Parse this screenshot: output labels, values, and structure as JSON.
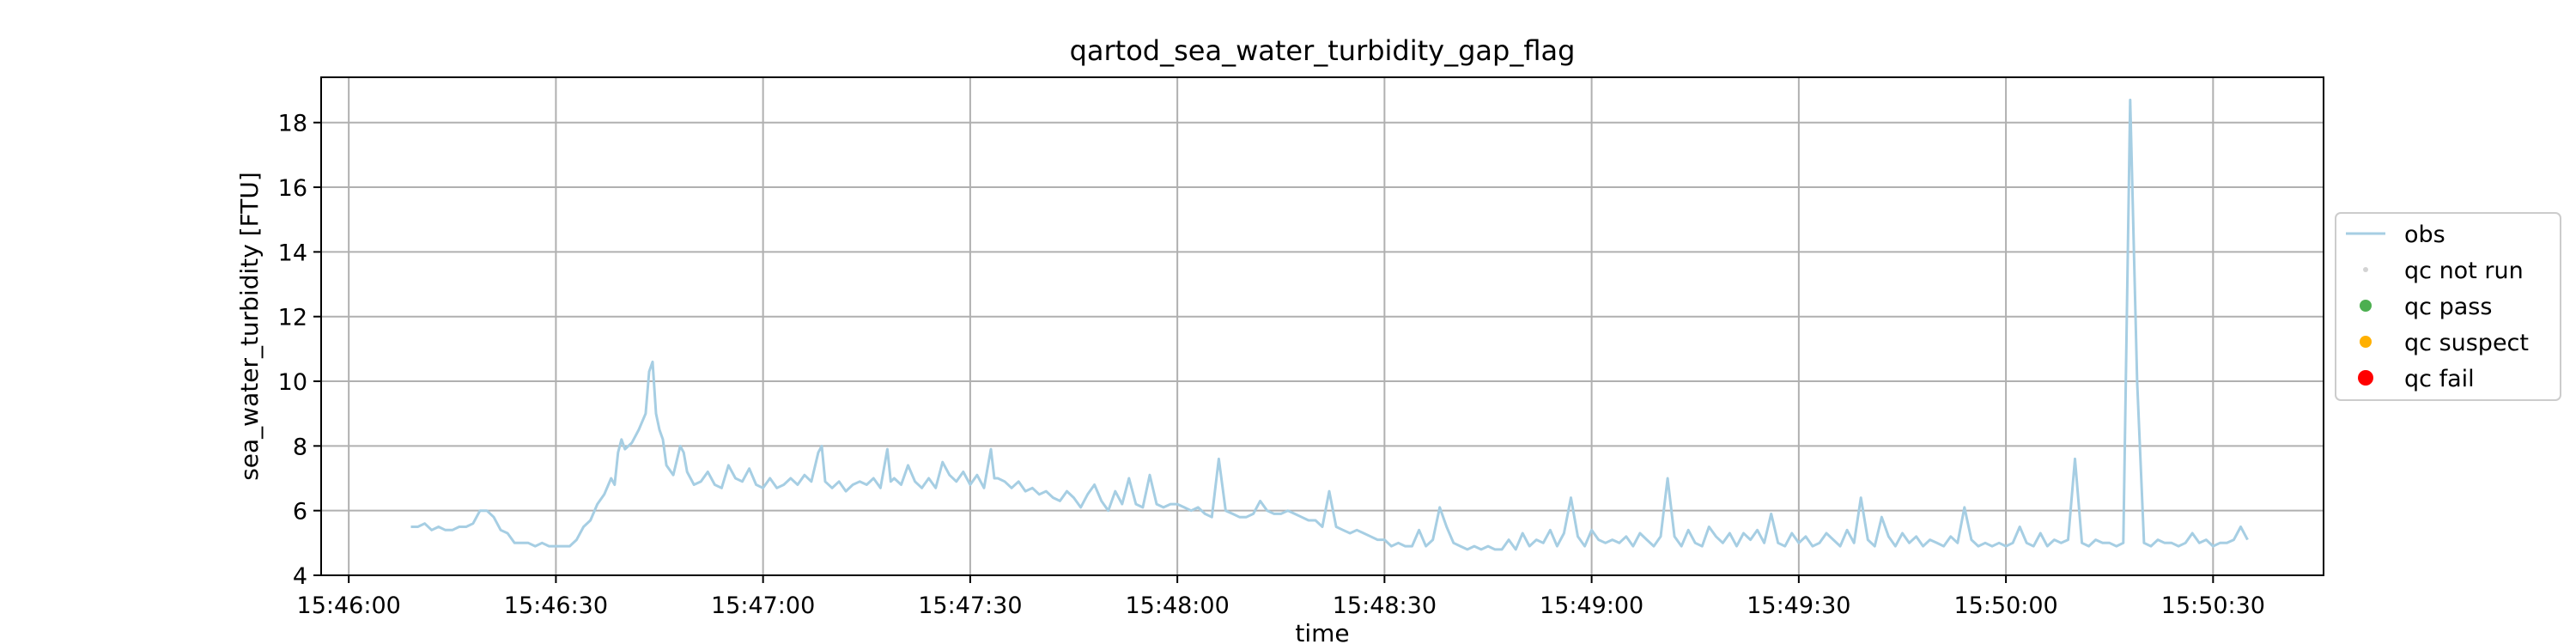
{
  "chart_data": {
    "type": "line",
    "title": "qartod_sea_water_turbidity_gap_flag",
    "xlabel": "time",
    "ylabel": "sea_water_turbidity [FTU]",
    "x_ticks": [
      "15:46:00",
      "15:46:30",
      "15:47:00",
      "15:47:30",
      "15:48:00",
      "15:48:30",
      "15:49:00",
      "15:49:30",
      "15:50:00",
      "15:50:30"
    ],
    "x_tick_seconds": [
      0,
      30,
      60,
      90,
      120,
      150,
      180,
      210,
      240,
      270
    ],
    "xlim_seconds": [
      -4,
      286
    ],
    "y_ticks": [
      4,
      6,
      8,
      10,
      12,
      14,
      16,
      18
    ],
    "ylim": [
      4,
      19.4
    ],
    "grid": true,
    "legend_position": "right",
    "legend": [
      {
        "label": "obs",
        "marker": "line",
        "color": "#a6cee3"
      },
      {
        "label": "qc not run",
        "marker": "dot-small",
        "color": "#d3d3d3"
      },
      {
        "label": "qc pass",
        "marker": "dot",
        "color": "#4caf50"
      },
      {
        "label": "qc suspect",
        "marker": "dot",
        "color": "#ffb000"
      },
      {
        "label": "qc fail",
        "marker": "dot-large",
        "color": "#ff0000"
      }
    ],
    "series": [
      {
        "name": "obs",
        "color": "#a6cee3",
        "points": [
          [
            9,
            5.5
          ],
          [
            10,
            5.5
          ],
          [
            11,
            5.6
          ],
          [
            12,
            5.4
          ],
          [
            13,
            5.5
          ],
          [
            14,
            5.4
          ],
          [
            15,
            5.4
          ],
          [
            16,
            5.5
          ],
          [
            17,
            5.5
          ],
          [
            18,
            5.6
          ],
          [
            19,
            6.0
          ],
          [
            20,
            6.0
          ],
          [
            21,
            5.8
          ],
          [
            22,
            5.4
          ],
          [
            23,
            5.3
          ],
          [
            24,
            5.0
          ],
          [
            25,
            5.0
          ],
          [
            26,
            5.0
          ],
          [
            27,
            4.9
          ],
          [
            28,
            5.0
          ],
          [
            29,
            4.9
          ],
          [
            30,
            4.9
          ],
          [
            31,
            4.9
          ],
          [
            32,
            4.9
          ],
          [
            33,
            5.1
          ],
          [
            34,
            5.5
          ],
          [
            35,
            5.7
          ],
          [
            36,
            6.2
          ],
          [
            37,
            6.5
          ],
          [
            38,
            7.0
          ],
          [
            38.5,
            6.8
          ],
          [
            39,
            7.8
          ],
          [
            39.5,
            8.2
          ],
          [
            40,
            7.9
          ],
          [
            41,
            8.1
          ],
          [
            42,
            8.5
          ],
          [
            43,
            9.0
          ],
          [
            43.5,
            10.3
          ],
          [
            44,
            10.6
          ],
          [
            44.5,
            9.0
          ],
          [
            45,
            8.5
          ],
          [
            45.5,
            8.2
          ],
          [
            46,
            7.4
          ],
          [
            47,
            7.1
          ],
          [
            48,
            8.0
          ],
          [
            48.5,
            7.8
          ],
          [
            49,
            7.2
          ],
          [
            50,
            6.8
          ],
          [
            51,
            6.9
          ],
          [
            52,
            7.2
          ],
          [
            53,
            6.8
          ],
          [
            54,
            6.7
          ],
          [
            55,
            7.4
          ],
          [
            56,
            7.0
          ],
          [
            57,
            6.9
          ],
          [
            58,
            7.3
          ],
          [
            59,
            6.8
          ],
          [
            60,
            6.7
          ],
          [
            61,
            7.0
          ],
          [
            62,
            6.7
          ],
          [
            63,
            6.8
          ],
          [
            64,
            7.0
          ],
          [
            65,
            6.8
          ],
          [
            66,
            7.1
          ],
          [
            67,
            6.9
          ],
          [
            68,
            7.8
          ],
          [
            68.5,
            8.0
          ],
          [
            69,
            6.9
          ],
          [
            70,
            6.7
          ],
          [
            71,
            6.9
          ],
          [
            72,
            6.6
          ],
          [
            73,
            6.8
          ],
          [
            74,
            6.9
          ],
          [
            75,
            6.8
          ],
          [
            76,
            7.0
          ],
          [
            77,
            6.7
          ],
          [
            78,
            7.9
          ],
          [
            78.5,
            6.9
          ],
          [
            79,
            7.0
          ],
          [
            80,
            6.8
          ],
          [
            81,
            7.4
          ],
          [
            82,
            6.9
          ],
          [
            83,
            6.7
          ],
          [
            84,
            7.0
          ],
          [
            85,
            6.7
          ],
          [
            86,
            7.5
          ],
          [
            87,
            7.1
          ],
          [
            88,
            6.9
          ],
          [
            89,
            7.2
          ],
          [
            90,
            6.8
          ],
          [
            91,
            7.1
          ],
          [
            92,
            6.7
          ],
          [
            93,
            7.9
          ],
          [
            93.5,
            7.0
          ],
          [
            94,
            7.0
          ],
          [
            95,
            6.9
          ],
          [
            96,
            6.7
          ],
          [
            97,
            6.9
          ],
          [
            98,
            6.6
          ],
          [
            99,
            6.7
          ],
          [
            100,
            6.5
          ],
          [
            101,
            6.6
          ],
          [
            102,
            6.4
          ],
          [
            103,
            6.3
          ],
          [
            104,
            6.6
          ],
          [
            105,
            6.4
          ],
          [
            106,
            6.1
          ],
          [
            107,
            6.5
          ],
          [
            108,
            6.8
          ],
          [
            109,
            6.3
          ],
          [
            110,
            6.0
          ],
          [
            111,
            6.6
          ],
          [
            112,
            6.2
          ],
          [
            113,
            7.0
          ],
          [
            114,
            6.2
          ],
          [
            115,
            6.1
          ],
          [
            116,
            7.1
          ],
          [
            117,
            6.2
          ],
          [
            118,
            6.1
          ],
          [
            119,
            6.2
          ],
          [
            120,
            6.2
          ],
          [
            121,
            6.1
          ],
          [
            122,
            6.0
          ],
          [
            123,
            6.1
          ],
          [
            124,
            5.9
          ],
          [
            125,
            5.8
          ],
          [
            126,
            7.6
          ],
          [
            127,
            6.0
          ],
          [
            128,
            5.9
          ],
          [
            129,
            5.8
          ],
          [
            130,
            5.8
          ],
          [
            131,
            5.9
          ],
          [
            132,
            6.3
          ],
          [
            133,
            6.0
          ],
          [
            134,
            5.9
          ],
          [
            135,
            5.9
          ],
          [
            136,
            6.0
          ],
          [
            137,
            5.9
          ],
          [
            138,
            5.8
          ],
          [
            139,
            5.7
          ],
          [
            140,
            5.7
          ],
          [
            141,
            5.5
          ],
          [
            142,
            6.6
          ],
          [
            143,
            5.5
          ],
          [
            144,
            5.4
          ],
          [
            145,
            5.3
          ],
          [
            146,
            5.4
          ],
          [
            147,
            5.3
          ],
          [
            148,
            5.2
          ],
          [
            149,
            5.1
          ],
          [
            150,
            5.1
          ],
          [
            151,
            4.9
          ],
          [
            152,
            5.0
          ],
          [
            153,
            4.9
          ],
          [
            154,
            4.9
          ],
          [
            155,
            5.4
          ],
          [
            156,
            4.9
          ],
          [
            157,
            5.1
          ],
          [
            158,
            6.1
          ],
          [
            159,
            5.5
          ],
          [
            160,
            5.0
          ],
          [
            161,
            4.9
          ],
          [
            162,
            4.8
          ],
          [
            163,
            4.9
          ],
          [
            164,
            4.8
          ],
          [
            165,
            4.9
          ],
          [
            166,
            4.8
          ],
          [
            167,
            4.8
          ],
          [
            168,
            5.1
          ],
          [
            169,
            4.8
          ],
          [
            170,
            5.3
          ],
          [
            171,
            4.9
          ],
          [
            172,
            5.1
          ],
          [
            173,
            5.0
          ],
          [
            174,
            5.4
          ],
          [
            175,
            4.9
          ],
          [
            176,
            5.3
          ],
          [
            177,
            6.4
          ],
          [
            178,
            5.2
          ],
          [
            179,
            4.9
          ],
          [
            180,
            5.4
          ],
          [
            181,
            5.1
          ],
          [
            182,
            5.0
          ],
          [
            183,
            5.1
          ],
          [
            184,
            5.0
          ],
          [
            185,
            5.2
          ],
          [
            186,
            4.9
          ],
          [
            187,
            5.3
          ],
          [
            188,
            5.1
          ],
          [
            189,
            4.9
          ],
          [
            190,
            5.2
          ],
          [
            191,
            7.0
          ],
          [
            192,
            5.2
          ],
          [
            193,
            4.9
          ],
          [
            194,
            5.4
          ],
          [
            195,
            5.0
          ],
          [
            196,
            4.9
          ],
          [
            197,
            5.5
          ],
          [
            198,
            5.2
          ],
          [
            199,
            5.0
          ],
          [
            200,
            5.3
          ],
          [
            201,
            4.9
          ],
          [
            202,
            5.3
          ],
          [
            203,
            5.1
          ],
          [
            204,
            5.4
          ],
          [
            205,
            5.0
          ],
          [
            206,
            5.9
          ],
          [
            207,
            5.0
          ],
          [
            208,
            4.9
          ],
          [
            209,
            5.3
          ],
          [
            210,
            5.0
          ],
          [
            211,
            5.2
          ],
          [
            212,
            4.9
          ],
          [
            213,
            5.0
          ],
          [
            214,
            5.3
          ],
          [
            215,
            5.1
          ],
          [
            216,
            4.9
          ],
          [
            217,
            5.4
          ],
          [
            218,
            5.0
          ],
          [
            219,
            6.4
          ],
          [
            220,
            5.1
          ],
          [
            221,
            4.9
          ],
          [
            222,
            5.8
          ],
          [
            223,
            5.2
          ],
          [
            224,
            4.9
          ],
          [
            225,
            5.3
          ],
          [
            226,
            5.0
          ],
          [
            227,
            5.2
          ],
          [
            228,
            4.9
          ],
          [
            229,
            5.1
          ],
          [
            230,
            5.0
          ],
          [
            231,
            4.9
          ],
          [
            232,
            5.2
          ],
          [
            233,
            5.0
          ],
          [
            234,
            6.1
          ],
          [
            235,
            5.1
          ],
          [
            236,
            4.9
          ],
          [
            237,
            5.0
          ],
          [
            238,
            4.9
          ],
          [
            239,
            5.0
          ],
          [
            240,
            4.9
          ],
          [
            241,
            5.0
          ],
          [
            242,
            5.5
          ],
          [
            243,
            5.0
          ],
          [
            244,
            4.9
          ],
          [
            245,
            5.3
          ],
          [
            246,
            4.9
          ],
          [
            247,
            5.1
          ],
          [
            248,
            5.0
          ],
          [
            249,
            5.1
          ],
          [
            250,
            7.6
          ],
          [
            251,
            5.0
          ],
          [
            252,
            4.9
          ],
          [
            253,
            5.1
          ],
          [
            254,
            5.0
          ],
          [
            255,
            5.0
          ],
          [
            256,
            4.9
          ],
          [
            257,
            5.0
          ],
          [
            258,
            18.7
          ],
          [
            259,
            10.0
          ],
          [
            260,
            5.0
          ],
          [
            261,
            4.9
          ],
          [
            262,
            5.1
          ],
          [
            263,
            5.0
          ],
          [
            264,
            5.0
          ],
          [
            265,
            4.9
          ],
          [
            266,
            5.0
          ],
          [
            267,
            5.3
          ],
          [
            268,
            5.0
          ],
          [
            269,
            5.1
          ],
          [
            270,
            4.9
          ],
          [
            271,
            5.0
          ],
          [
            272,
            5.0
          ],
          [
            273,
            5.1
          ],
          [
            274,
            5.5
          ],
          [
            275,
            5.1
          ]
        ]
      }
    ]
  }
}
